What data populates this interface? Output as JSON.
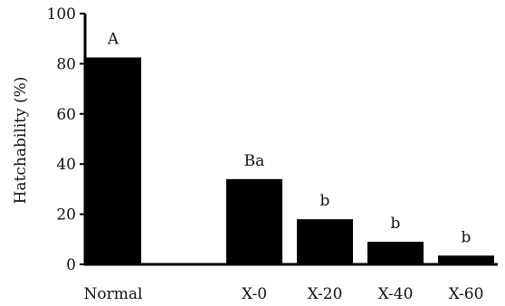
{
  "chart_data": {
    "type": "bar",
    "title": "",
    "xlabel": "",
    "ylabel": "Hatchability (%)",
    "ylim": [
      0,
      100
    ],
    "yticks": [
      0,
      20,
      40,
      60,
      80,
      100
    ],
    "categories": [
      "Normal",
      "",
      "X-0",
      "X-20",
      "X-40",
      "X-60"
    ],
    "values": [
      82.5,
      null,
      34,
      18,
      9,
      3.5
    ],
    "significance_labels": [
      "A",
      "",
      "Ba",
      "b",
      "b",
      "b"
    ],
    "bar_color": "#000000",
    "grid": false,
    "legend": "none"
  }
}
